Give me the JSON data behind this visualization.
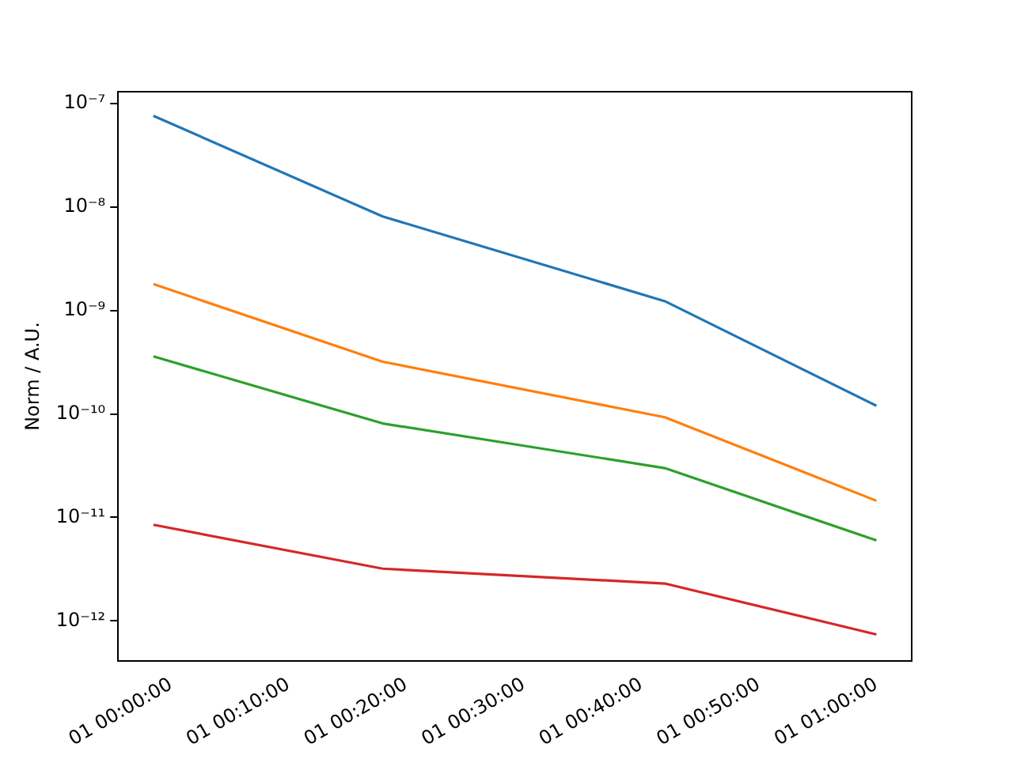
{
  "chart_data": {
    "type": "line",
    "ylabel": "Norm / A.U.",
    "log": "y",
    "grid": false,
    "legend": false,
    "marker": "none",
    "line_style": "solid",
    "x": [
      "--01-31T23:58:30",
      "--02-01T00:18",
      "--02-01T00:42",
      "--02-01T01:00"
    ],
    "xlim": [
      "--01-31T23:55:30",
      "--02-01T01:03"
    ],
    "xticks": [
      {
        "value": "--02-01T00:00",
        "label": "01 00:00:00"
      },
      {
        "value": "--02-01T00:10",
        "label": "01 00:10:00"
      },
      {
        "value": "--02-01T00:20",
        "label": "01 00:20:00"
      },
      {
        "value": "--02-01T00:30",
        "label": "01 00:30:00"
      },
      {
        "value": "--02-01T00:40",
        "label": "01 00:40:00"
      },
      {
        "value": "--02-01T00:50",
        "label": "01 00:50:00"
      },
      {
        "value": "--02-01T01:00",
        "label": "01 01:00:00"
      }
    ],
    "ylim": [
      4.1e-13,
      1.3e-07
    ],
    "yticks": [
      {
        "value": 1e-12,
        "label": "10⁻¹²"
      },
      {
        "value": 1e-11,
        "label": "10⁻¹¹"
      },
      {
        "value": 1e-10,
        "label": "10⁻¹⁰"
      },
      {
        "value": 1e-09,
        "label": "10⁻⁹"
      },
      {
        "value": 1e-08,
        "label": "10⁻⁸"
      },
      {
        "value": 1e-07,
        "label": "10⁻⁷"
      }
    ],
    "series": [
      {
        "color": "#1f77b4",
        "values": [
          7.6e-08,
          8.1e-09,
          1.23e-09,
          1.2e-10
        ]
      },
      {
        "color": "#ff7f0e",
        "values": [
          1.8e-09,
          3.2e-10,
          9.3e-11,
          1.45e-11
        ]
      },
      {
        "color": "#2ca02c",
        "values": [
          3.6e-10,
          8.1e-11,
          3e-11,
          6e-12
        ]
      },
      {
        "color": "#d62728",
        "values": [
          8.5e-12,
          3.2e-12,
          2.3e-12,
          7.4e-13
        ]
      }
    ]
  }
}
